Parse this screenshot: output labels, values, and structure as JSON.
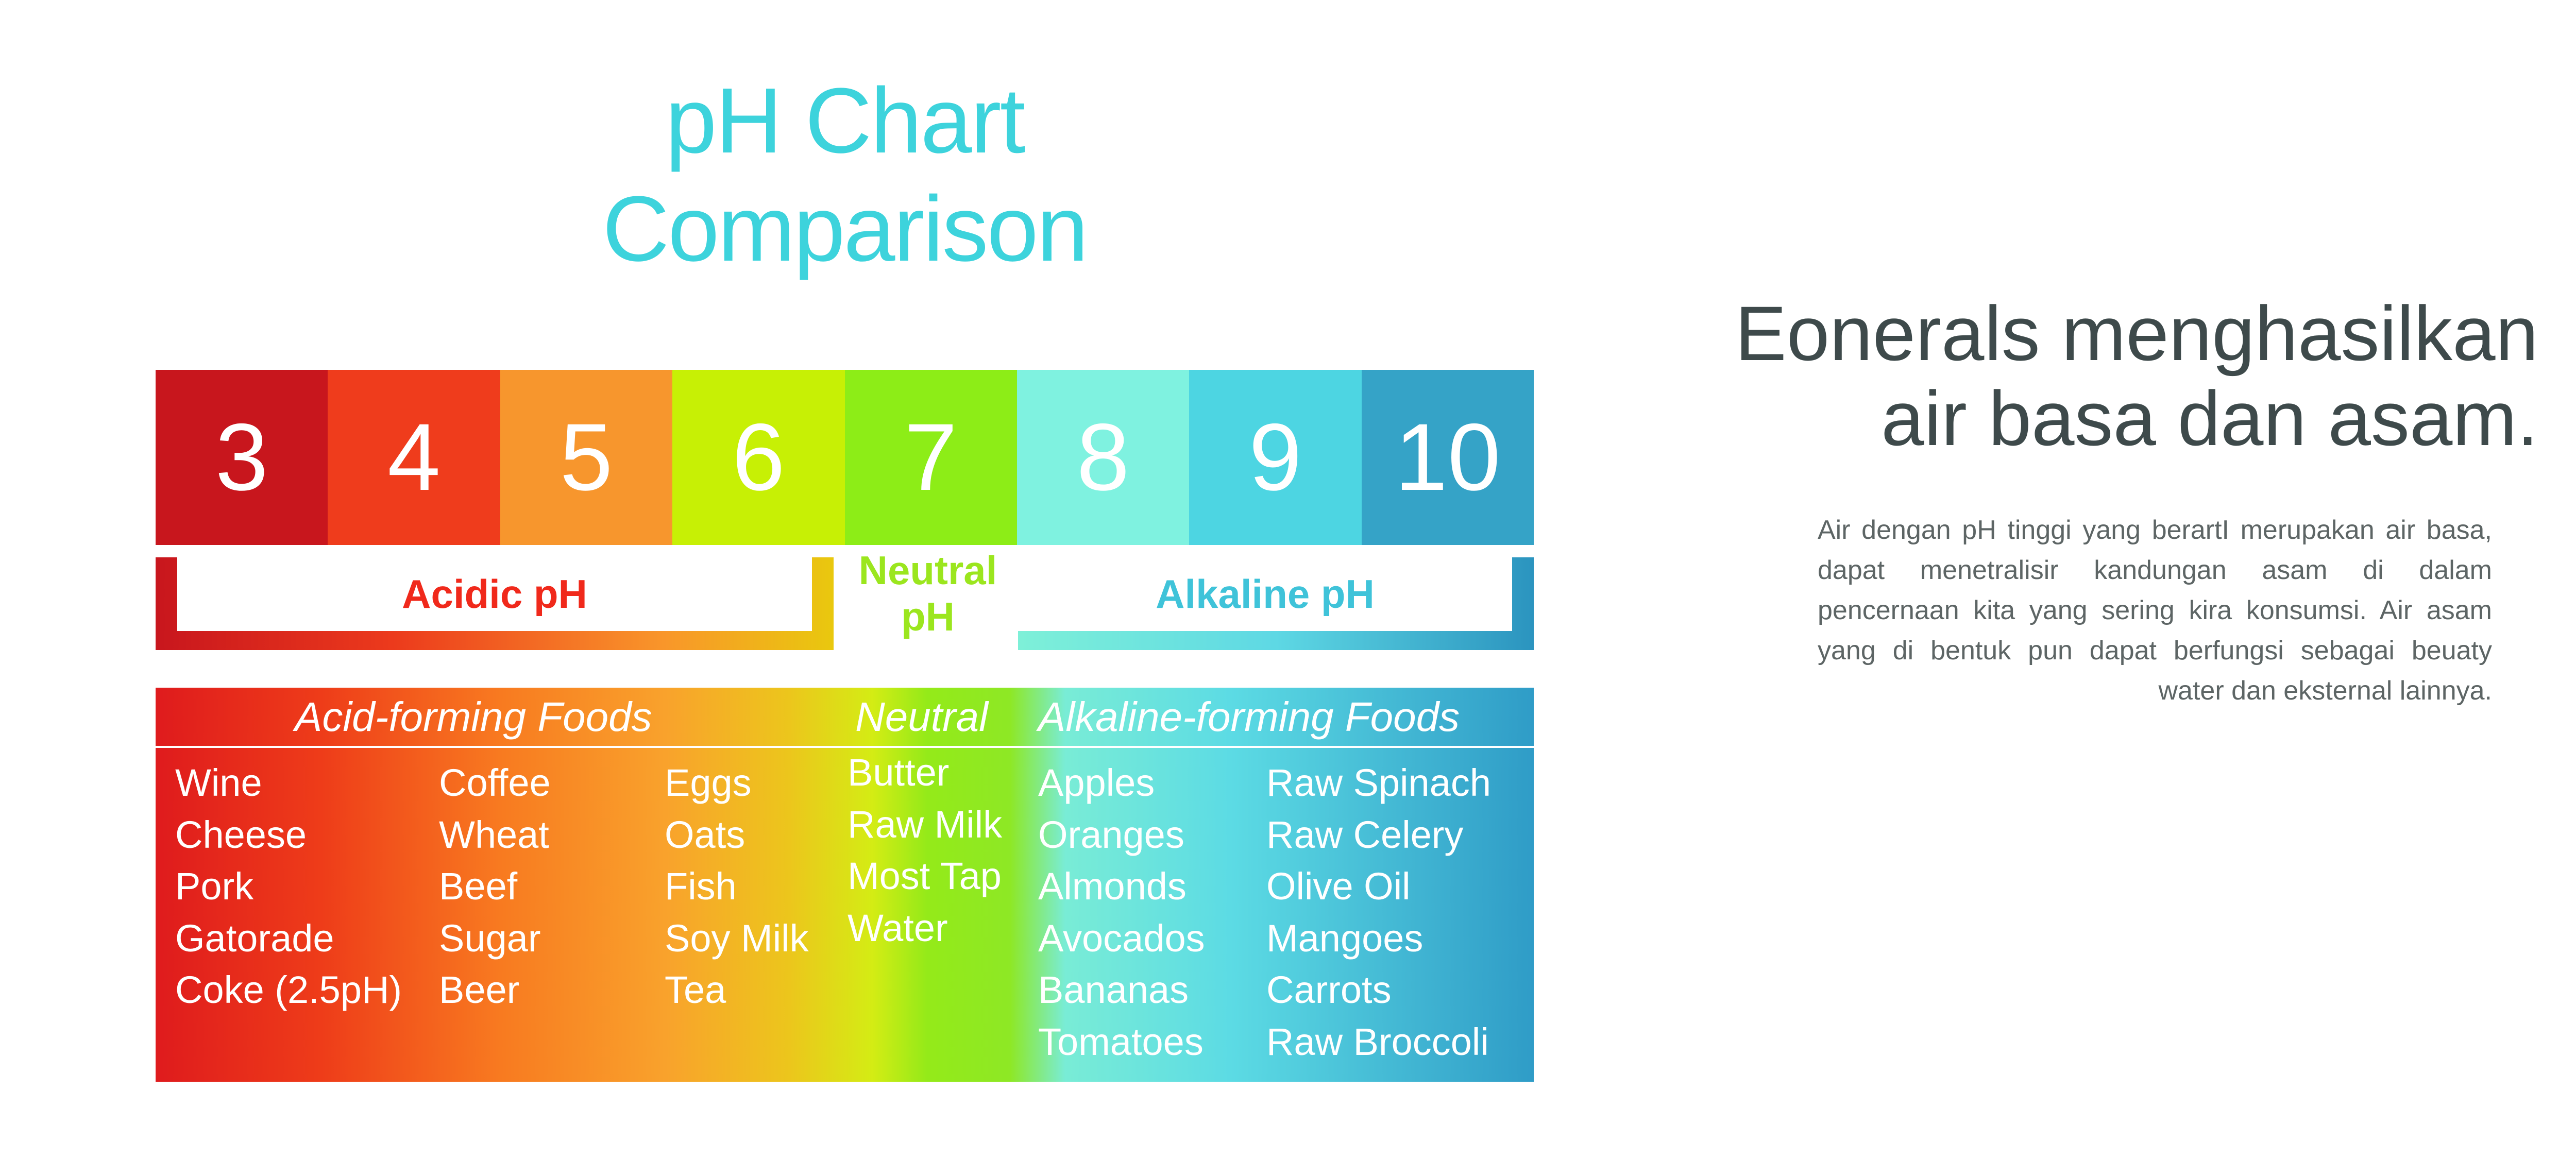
{
  "chart": {
    "title_line1": "pH Chart",
    "title_line2": "Comparison",
    "scale": [
      {
        "value": "3",
        "color": "#c8161d"
      },
      {
        "value": "4",
        "color": "#ef3c1c"
      },
      {
        "value": "5",
        "color": "#f7962d"
      },
      {
        "value": "6",
        "color": "#c7f005"
      },
      {
        "value": "7",
        "color": "#8ded17"
      },
      {
        "value": "8",
        "color": "#7ff2e0"
      },
      {
        "value": "9",
        "color": "#4dd5e2"
      },
      {
        "value": "10",
        "color": "#35a3c7"
      }
    ],
    "brackets": {
      "acidic": "Acidic pH",
      "neutral_line1": "Neutral",
      "neutral_line2": "pH",
      "alkaline": "Alkaline pH"
    },
    "foods": {
      "acid_header": "Acid-forming Foods",
      "neutral_header": "Neutral",
      "alkaline_header": "Alkaline-forming Foods",
      "columns": [
        [
          "Wine",
          "Cheese",
          "Pork",
          "Gatorade",
          "Coke (2.5pH)"
        ],
        [
          "Coffee",
          "Wheat",
          "Beef",
          "Sugar",
          "Beer"
        ],
        [
          "Eggs",
          "Oats",
          "Fish",
          "Soy Milk",
          "Tea"
        ],
        [
          "Butter",
          "Raw Milk",
          "Most Tap",
          "Water"
        ],
        [
          "Apples",
          "Oranges",
          "Almonds",
          "Avocados",
          "Bananas",
          "Tomatoes"
        ],
        [
          "Raw Spinach",
          "Raw Celery",
          "Olive Oil",
          "Mangoes",
          "Carrots",
          "Raw Broccoli"
        ]
      ]
    }
  },
  "side": {
    "headline_line1": "Eonerals menghasilkan",
    "headline_line2": "air basa dan asam.",
    "body": "Air dengan pH tinggi yang berartI merupakan air basa, dapat menetralisir kandungan asam di dalam pencernaan kita yang sering kira konsumsi. Air asam yang di bentuk pun dapat berfungsi sebagai beuaty water dan eksternal lainnya."
  }
}
